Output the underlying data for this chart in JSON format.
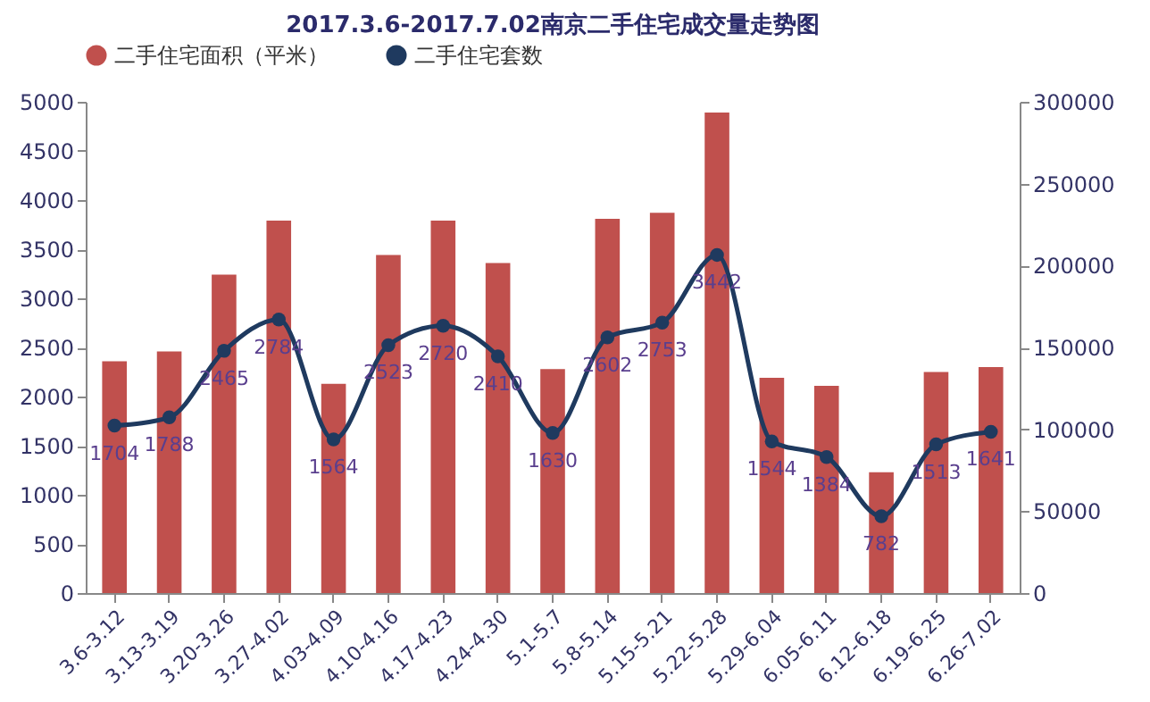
{
  "chart_data": {
    "type": "bar",
    "title": "2017.3.6-2017.7.02南京二手住宅成交量走势图",
    "categories": [
      "3.6-3.12",
      "3.13-3.19",
      "3.20-3.26",
      "3.27-4.02",
      "4.03-4.09",
      "4.10-4.16",
      "4.17-4.23",
      "4.24-4.30",
      "5.1-5.7",
      "5.8-5.14",
      "5.15-5.21",
      "5.22-5.28",
      "5.29-6.04",
      "6.05-6.11",
      "6.12-6.18",
      "6.19-6.25",
      "6.26-7.02"
    ],
    "series": [
      {
        "name": "二手住宅面积（平米）",
        "color": "#c0504d",
        "values": [
          2360,
          2460,
          3240,
          3790,
          2130,
          3440,
          3790,
          3360,
          2280,
          3810,
          3870,
          4890,
          2190,
          2110,
          1230,
          2250,
          2300
        ]
      },
      {
        "name": "二手住宅套数",
        "type": "line",
        "color": "#1f3a5f",
        "marker": "circle",
        "data_labels": true,
        "values": [
          1704,
          1788,
          2465,
          2784,
          1564,
          2523,
          2720,
          2410,
          1630,
          2602,
          2753,
          3442,
          1544,
          1384,
          782,
          1513,
          1641
        ]
      }
    ],
    "ylim": [
      0,
      5000
    ],
    "yticks": [
      0,
      500,
      1000,
      1500,
      2000,
      2500,
      3000,
      3500,
      4000,
      4500,
      5000
    ],
    "y2lim": [
      0,
      300000
    ],
    "y2ticks": [
      0,
      50000,
      100000,
      150000,
      200000,
      250000,
      300000
    ],
    "grid": false,
    "legend": "top"
  }
}
